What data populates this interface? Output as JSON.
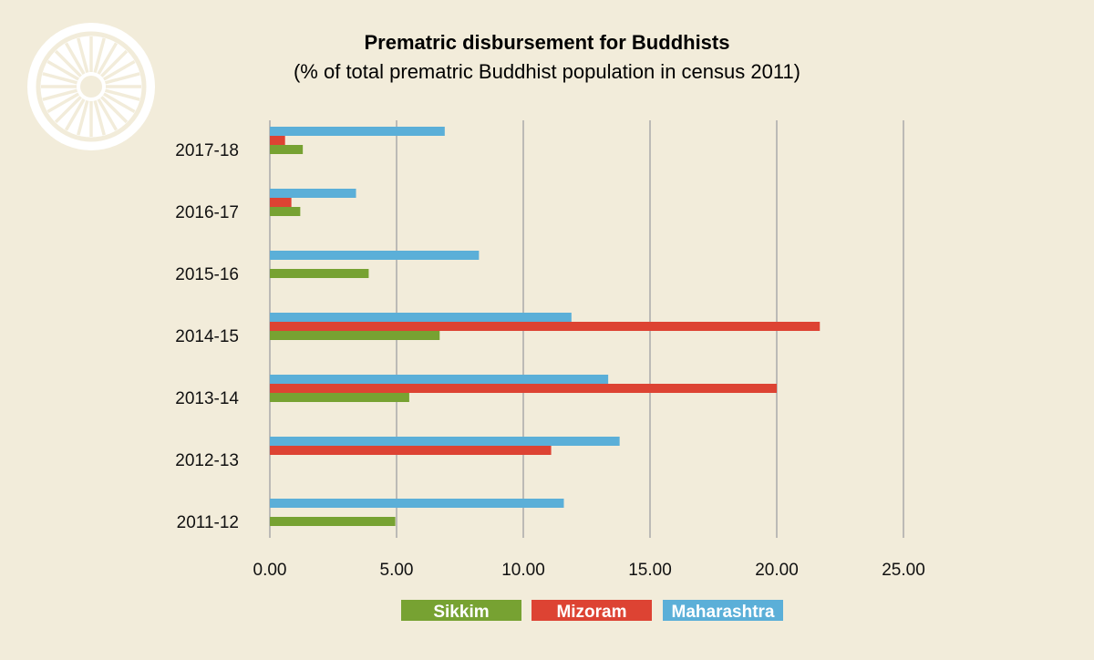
{
  "chart_data": {
    "type": "bar",
    "orientation": "horizontal",
    "title": "Prematric disbursement for Buddhists",
    "subtitle": "(% of total prematric Buddhist population in census 2011)",
    "categories": [
      "2017-18",
      "2016-17",
      "2015-16",
      "2014-15",
      "2013-14",
      "2012-13",
      "2011-12"
    ],
    "series": [
      {
        "name": "Maharashtra",
        "color": "#5bafd8",
        "values": [
          6.9,
          3.4,
          8.25,
          11.9,
          13.35,
          13.8,
          11.6
        ]
      },
      {
        "name": "Mizoram",
        "color": "#dd4333",
        "values": [
          0.6,
          0.85,
          null,
          21.7,
          20.0,
          11.1,
          null
        ]
      },
      {
        "name": "Sikkim",
        "color": "#77a232",
        "values": [
          1.3,
          1.2,
          3.9,
          6.7,
          5.5,
          null,
          4.95
        ]
      }
    ],
    "xticks": [
      "0.00",
      "5.00",
      "10.00",
      "15.00",
      "20.00",
      "25.00"
    ],
    "xlim": [
      0,
      25
    ],
    "grid": "vertical",
    "legend": {
      "position": "bottom",
      "items": [
        {
          "label": "Sikkim",
          "color": "#77a232"
        },
        {
          "label": "Mizoram",
          "color": "#dd4333"
        },
        {
          "label": "Maharashtra",
          "color": "#5bafd8"
        }
      ]
    }
  }
}
